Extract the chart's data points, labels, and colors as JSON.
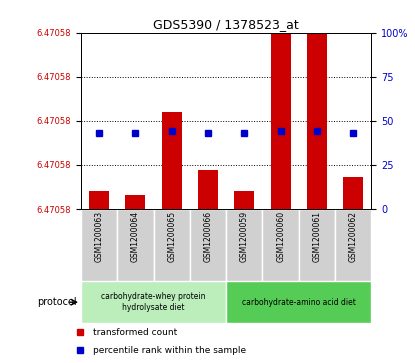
{
  "title": "GDS5390 / 1378523_at",
  "samples": [
    "GSM1200063",
    "GSM1200064",
    "GSM1200065",
    "GSM1200066",
    "GSM1200059",
    "GSM1200060",
    "GSM1200061",
    "GSM1200062"
  ],
  "bar_heights": [
    10,
    8,
    55,
    22,
    10,
    100,
    100,
    18
  ],
  "percentile_ranks": [
    43,
    43,
    44,
    43,
    43,
    44,
    44,
    43
  ],
  "ylim_left": [
    0,
    100
  ],
  "ylim_right": [
    0,
    100
  ],
  "ytick_labels_left": [
    "6.47058",
    "6.47058",
    "6.47058",
    "6.47058",
    "6.47058"
  ],
  "ytick_positions": [
    0,
    25,
    50,
    75,
    100
  ],
  "ytick_labels_right": [
    "0",
    "25",
    "50",
    "75",
    "100%"
  ],
  "bar_color": "#cc0000",
  "percentile_color": "#0000cc",
  "grid_color": "#000000",
  "protocol_groups": [
    {
      "label": "carbohydrate-whey protein\nhydrolysate diet",
      "start": 0,
      "end": 4,
      "color": "#bbeebb"
    },
    {
      "label": "carbohydrate-amino acid diet",
      "start": 4,
      "end": 8,
      "color": "#55cc55"
    }
  ],
  "legend_bar_label": "transformed count",
  "legend_pct_label": "percentile rank within the sample",
  "protocol_label": "protocol",
  "sample_box_color": "#d0d0d0",
  "bar_width": 0.55,
  "figure_width": 4.15,
  "figure_height": 3.63
}
